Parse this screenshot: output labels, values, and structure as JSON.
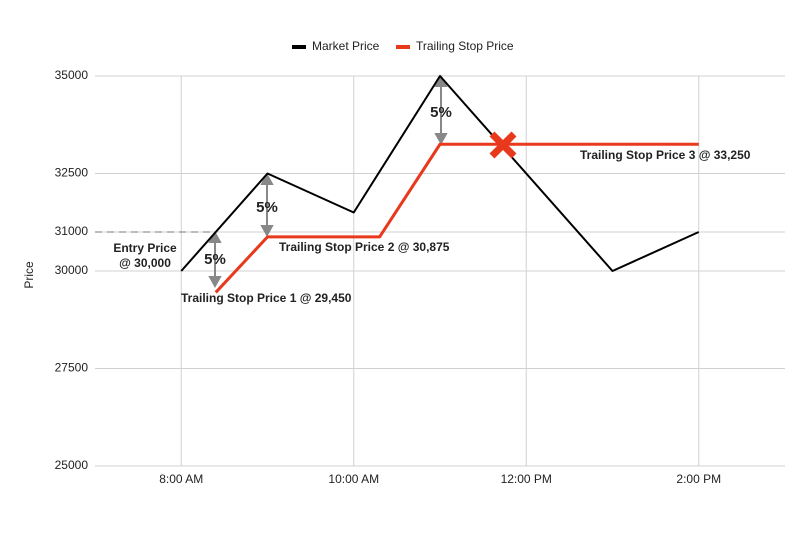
{
  "chart_data": {
    "type": "line",
    "y_label": "Price",
    "xlim": [
      7,
      15
    ],
    "xticks": [
      {
        "value": 8,
        "label": "8:00 AM"
      },
      {
        "value": 10,
        "label": "10:00 AM"
      },
      {
        "value": 12,
        "label": "12:00 PM"
      },
      {
        "value": 14,
        "label": "2:00 PM"
      }
    ],
    "ylim": [
      25000,
      35000
    ],
    "yticks": [
      25000,
      27500,
      30000,
      31000,
      32500,
      35000
    ],
    "grid": true,
    "legend": "top",
    "series": [
      {
        "name": "Market Price",
        "color": "#000000",
        "x": [
          8,
          9,
          10,
          11,
          13,
          14
        ],
        "values": [
          30000,
          32500,
          31500,
          35000,
          30000,
          31000
        ]
      },
      {
        "name": "Trailing Stop Price",
        "color": "#e8391d",
        "x": [
          8.4,
          9,
          10.3,
          11,
          14
        ],
        "values": [
          29450,
          30875,
          30875,
          33250,
          33250
        ]
      }
    ],
    "annotations": [
      "Entry Price",
      "@ 30,000",
      "Trailing Stop Price 1 @ 29,450",
      "Trailing Stop Price 2 @ 30,875",
      "Trailing Stop Price 3 @ 33,250",
      "5%",
      "5%",
      "5%"
    ]
  }
}
